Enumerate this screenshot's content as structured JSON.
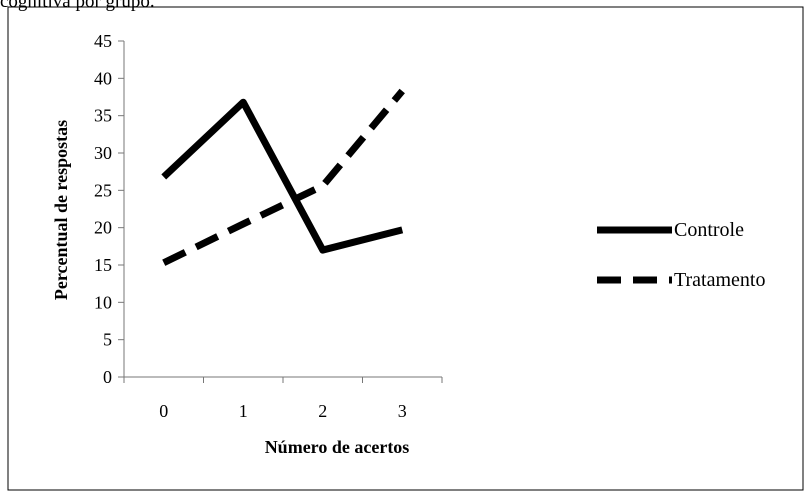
{
  "caption": "cognitiva por grupo.",
  "chart_data": {
    "type": "line",
    "x": [
      0,
      1,
      2,
      3
    ],
    "xticks": [
      "0",
      "1",
      "2",
      "3"
    ],
    "xlabel": "Número de acertos",
    "ylabel": "Percentual de respostas",
    "ylim": [
      0,
      45
    ],
    "yticks": [
      "0",
      "5",
      "10",
      "15",
      "20",
      "25",
      "30",
      "35",
      "40",
      "45"
    ],
    "grid": false,
    "legend_position": "right",
    "series": [
      {
        "name": "Controle",
        "values": [
          26.8,
          36.8,
          17.0,
          19.7
        ],
        "style": "solid",
        "color": "#000000"
      },
      {
        "name": "Tratamento",
        "values": [
          15.3,
          20.5,
          25.6,
          38.3
        ],
        "style": "dashed",
        "color": "#000000"
      }
    ]
  }
}
